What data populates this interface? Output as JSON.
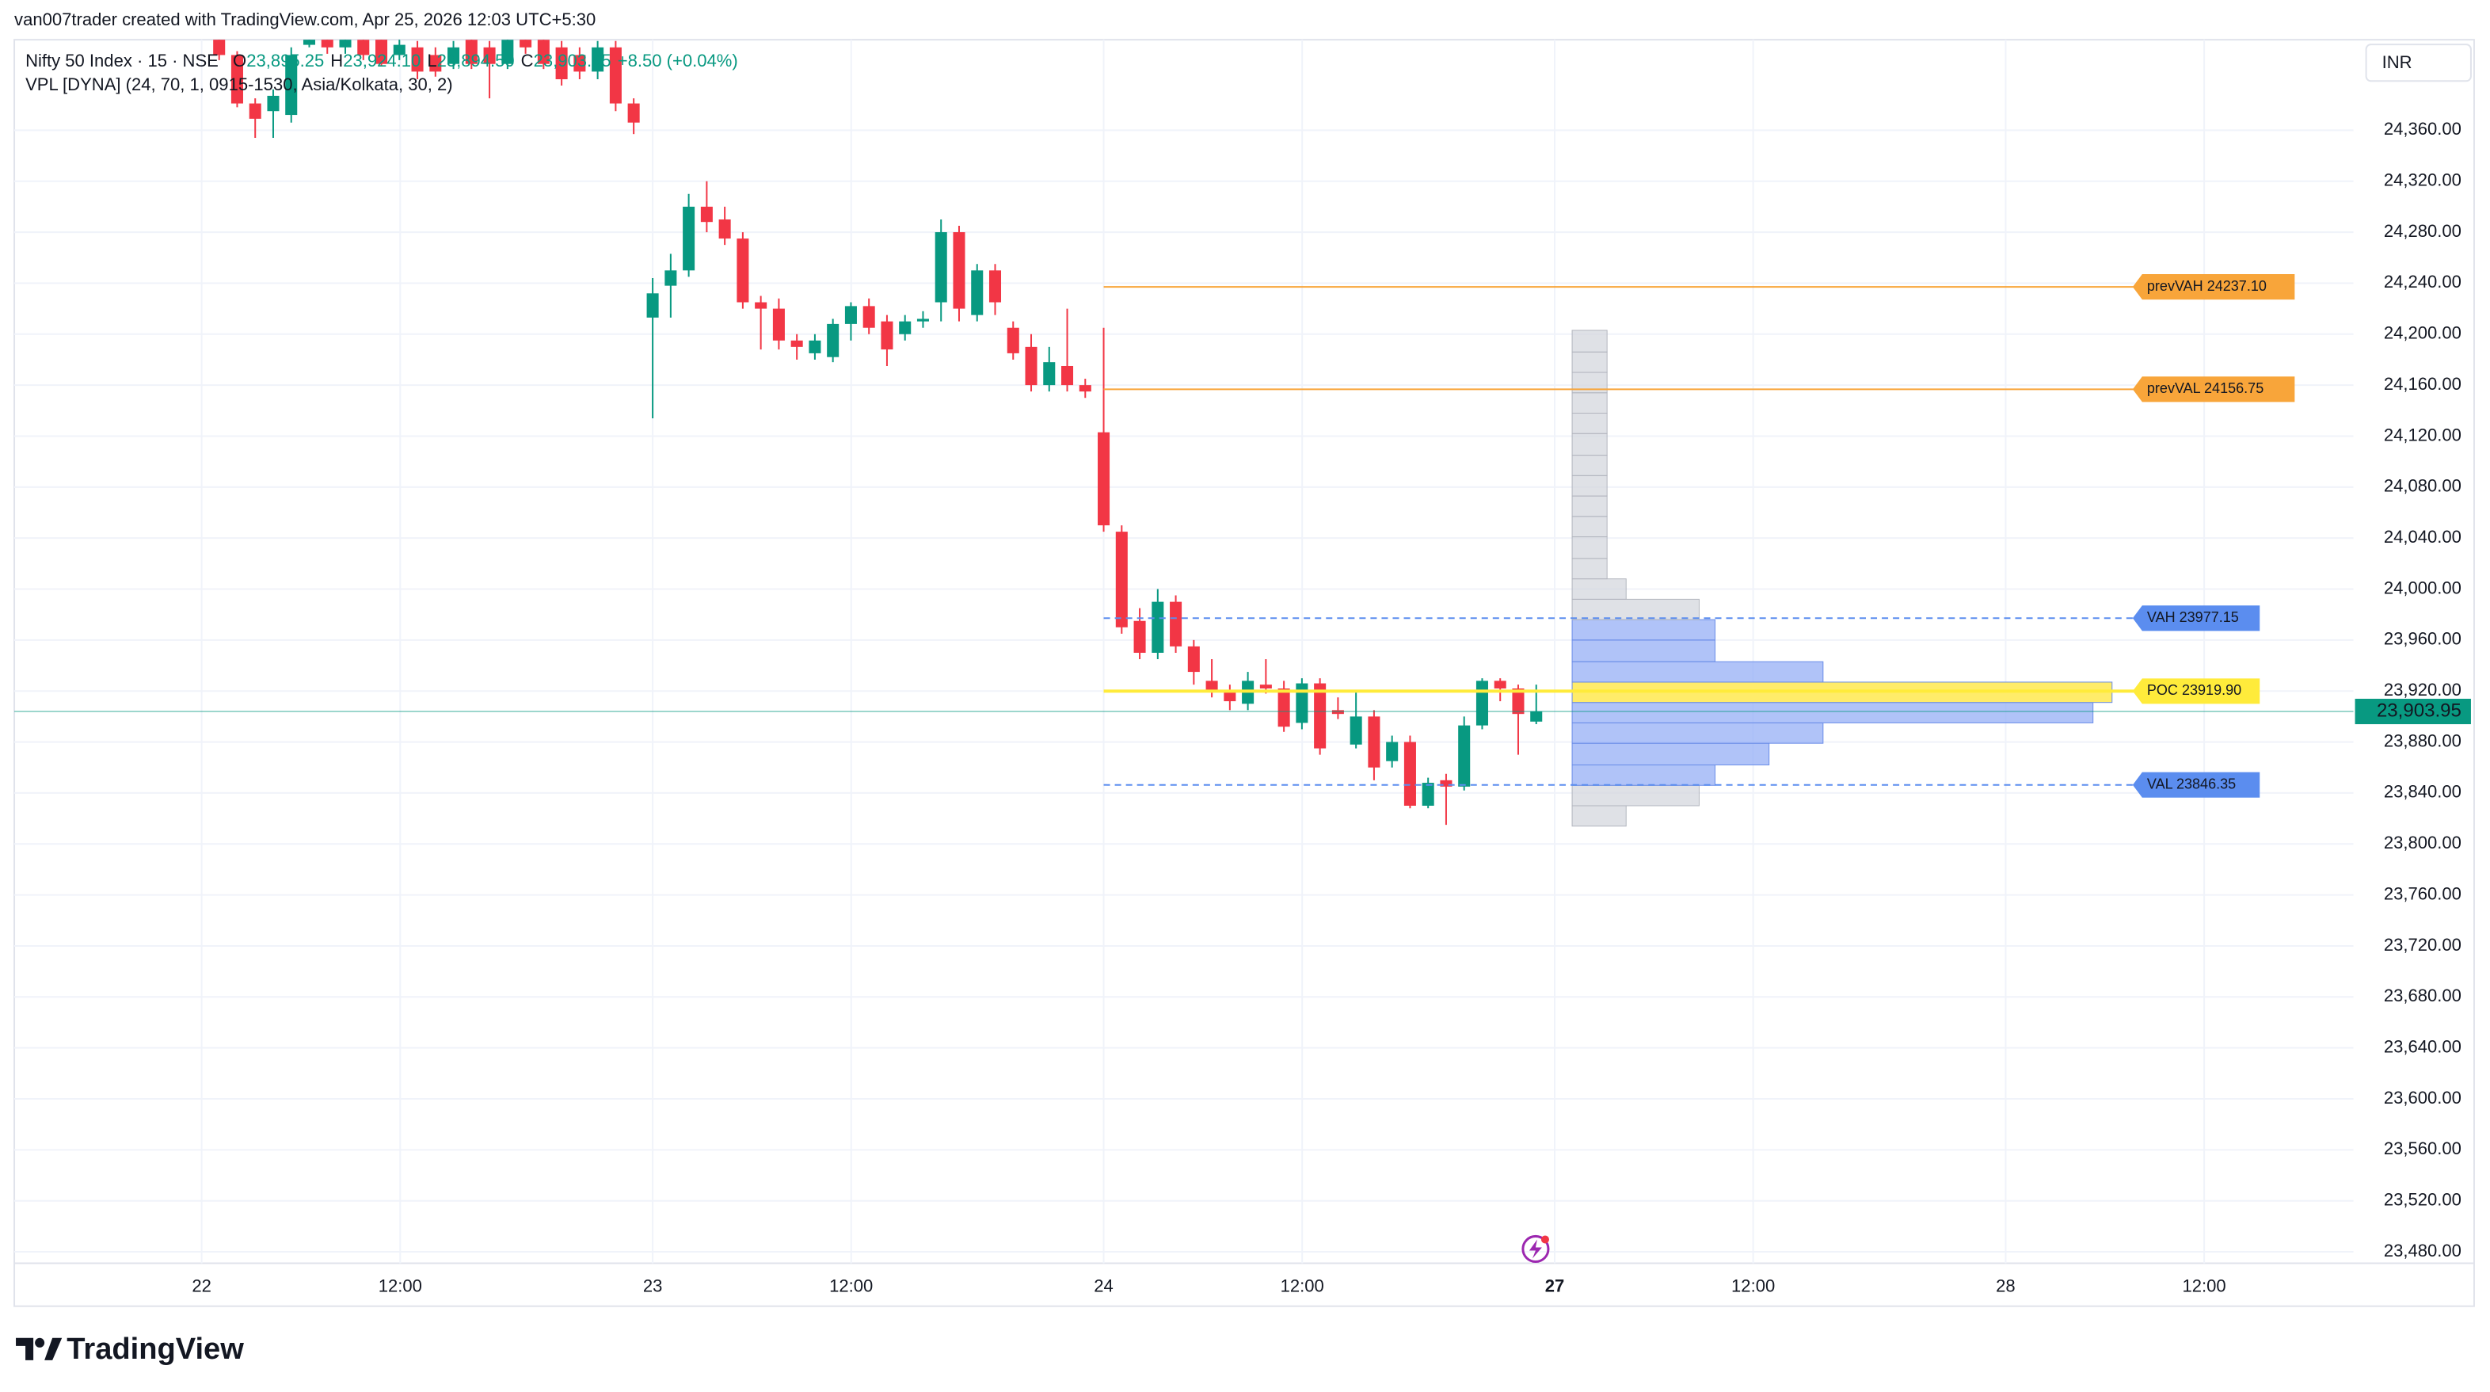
{
  "chart_data": {
    "type": "candlestick",
    "watermark": "van007trader created with TradingView.com, Apr 25, 2026 12:03 UTC+5:30",
    "symbol": "Nifty 50 Index · 15 · NSE",
    "ohlc_legend": [
      {
        "key": "O",
        "label": "23,895.25"
      },
      {
        "key": "H",
        "label": "23,924.10"
      },
      {
        "key": "L",
        "label": "23,894.50"
      },
      {
        "key": "C",
        "label": "23,903.95"
      }
    ],
    "change": "+8.50 (+0.04%)",
    "indicator": "VPL [DYNA] (24, 70, 1, 0915-1530, Asia/Kolkata, 30, 2)",
    "currency": "INR",
    "brand": "TradingView",
    "up_color": "#089981",
    "down_color": "#f23645",
    "x_labels": [
      "22",
      "12:00",
      "23",
      "12:00",
      "24",
      "12:00",
      "27",
      "12:00",
      "28",
      "12:00"
    ],
    "ylim": [
      23471,
      24431
    ],
    "yticks": [
      {
        "value": 23480,
        "label": "23,480.00"
      },
      {
        "value": 23520,
        "label": "23,520.00"
      },
      {
        "value": 23560,
        "label": "23,560.00"
      },
      {
        "value": 23600,
        "label": "23,600.00"
      },
      {
        "value": 23640,
        "label": "23,640.00"
      },
      {
        "value": 23680,
        "label": "23,680.00"
      },
      {
        "value": 23720,
        "label": "23,720.00"
      },
      {
        "value": 23760,
        "label": "23,760.00"
      },
      {
        "value": 23800,
        "label": "23,800.00"
      },
      {
        "value": 23840,
        "label": "23,840.00"
      },
      {
        "value": 23880,
        "label": "23,880.00"
      },
      {
        "value": 23920,
        "label": "23,920.00"
      },
      {
        "value": 23960,
        "label": "23,960.00"
      },
      {
        "value": 24000,
        "label": "24,000.00"
      },
      {
        "value": 24040,
        "label": "24,040.00"
      },
      {
        "value": 24080,
        "label": "24,080.00"
      },
      {
        "value": 24120,
        "label": "24,120.00"
      },
      {
        "value": 24160,
        "label": "24,160.00"
      },
      {
        "value": 24200,
        "label": "24,200.00"
      },
      {
        "value": 24240,
        "label": "24,240.00"
      },
      {
        "value": 24280,
        "label": "24,280.00"
      },
      {
        "value": 24320,
        "label": "24,320.00"
      },
      {
        "value": 24360,
        "label": "24,360.00"
      }
    ],
    "grid": true,
    "sessions": [
      {
        "open": [
          24437,
          24419,
          24381,
          24375,
          24372,
          24427,
          24437,
          24425,
          24431,
          24437,
          24419,
          24425,
          24419,
          24412,
          24431,
          24425,
          24412,
          24437,
          24431,
          24425,
          24419,
          24406,
          24425,
          24381
        ],
        "high": [
          24440,
          24422,
          24385,
          24392,
          24425,
          24440,
          24440,
          24440,
          24437,
          24440,
          24432,
          24430,
          24425,
          24430,
          24437,
          24430,
          24437,
          24440,
          24437,
          24430,
          24425,
          24430,
          24430,
          24385
        ],
        "low": [
          24415,
          24378,
          24354,
          24354,
          24366,
          24425,
          24420,
          24420,
          24415,
          24410,
          24415,
          24400,
          24402,
          24408,
          24408,
          24385,
          24408,
          24420,
          24408,
          24395,
          24400,
          24400,
          24375,
          24357
        ],
        "close": [
          24419,
          24381,
          24369,
          24387,
          24419,
          24437,
          24425,
          24435,
          24419,
          24412,
          24427,
          24406,
          24406,
          24425,
          24412,
          24412,
          24431,
          24425,
          24412,
          24400,
          24406,
          24425,
          24381,
          24366
        ]
      },
      {
        "open": [
          24213,
          24238,
          24250,
          24300,
          24290,
          24275,
          24225,
          24220,
          24195,
          24185,
          24182,
          24208,
          24222,
          24210,
          24200,
          24210,
          24225,
          24280,
          24215,
          24250,
          24205,
          24190,
          24160,
          24175,
          24160
        ],
        "high": [
          24244,
          24263,
          24310,
          24320,
          24300,
          24280,
          24230,
          24228,
          24200,
          24200,
          24212,
          24225,
          24228,
          24215,
          24215,
          24218,
          24290,
          24285,
          24255,
          24255,
          24210,
          24200,
          24190,
          24220,
          24165
        ],
        "low": [
          24134,
          24213,
          24245,
          24280,
          24270,
          24220,
          24188,
          24188,
          24180,
          24180,
          24178,
          24195,
          24200,
          24175,
          24195,
          24205,
          24210,
          24210,
          24210,
          24215,
          24180,
          24155,
          24155,
          24155,
          24150
        ],
        "close": [
          24232,
          24250,
          24300,
          24288,
          24275,
          24225,
          24220,
          24195,
          24190,
          24195,
          24208,
          24222,
          24205,
          24188,
          24210,
          24212,
          24280,
          24220,
          24250,
          24225,
          24185,
          24160,
          24178,
          24160,
          24155
        ]
      },
      {
        "open": [
          24123,
          24045,
          23975,
          23950,
          23990,
          23955,
          23928,
          23920,
          23910,
          23925,
          23922,
          23895,
          23926,
          23905,
          23878,
          23900,
          23865,
          23880,
          23830,
          23850,
          23845,
          23893,
          23928,
          23922,
          23896
        ],
        "high": [
          24205,
          24050,
          23985,
          24000,
          23995,
          23960,
          23945,
          23925,
          23935,
          23945,
          23928,
          23930,
          23930,
          23915,
          23920,
          23905,
          23885,
          23885,
          23852,
          23855,
          23900,
          23930,
          23930,
          23925,
          23925
        ],
        "low": [
          24045,
          23965,
          23945,
          23945,
          23950,
          23925,
          23915,
          23905,
          23905,
          23918,
          23888,
          23890,
          23870,
          23898,
          23875,
          23850,
          23860,
          23828,
          23828,
          23815,
          23842,
          23890,
          23912,
          23870,
          23894
        ],
        "close": [
          24050,
          23970,
          23950,
          23990,
          23955,
          23935,
          23920,
          23912,
          23928,
          23922,
          23892,
          23926,
          23875,
          23902,
          23900,
          23860,
          23880,
          23830,
          23848,
          23845,
          23893,
          23928,
          23922,
          23902,
          23904
        ]
      }
    ],
    "volume_profile": {
      "levels": [
        23814,
        23830,
        23846,
        23862,
        23879,
        23895,
        23911,
        23927,
        23943,
        23960,
        23976,
        23992,
        24008,
        24024,
        24041,
        24057,
        24073,
        24089,
        24105,
        24122,
        24138,
        24154,
        24170,
        24186,
        24203
      ],
      "volumes": [
        34,
        80,
        90,
        124,
        158,
        328,
        340,
        158,
        90,
        90,
        80,
        34,
        22,
        22,
        22,
        22,
        22,
        22,
        22,
        22,
        22,
        22,
        22,
        22
      ],
      "colors": {
        "outside": "#d1d4dc",
        "value_area": "#8fa9f5",
        "poc": "#ffeb62"
      }
    },
    "levels": [
      {
        "label": "prevVAH 24237.10",
        "value": 24237.1,
        "color": "#f8a53a",
        "style": "solid"
      },
      {
        "label": "prevVAL 24156.75",
        "value": 24156.75,
        "color": "#f8a53a",
        "style": "solid"
      },
      {
        "label": "VAH 23977.15",
        "value": 23977.15,
        "color": "#5b8def",
        "style": "dashed"
      },
      {
        "label": "POC 23919.90",
        "value": 23919.9,
        "color": "#ffeb3b",
        "style": "solid"
      },
      {
        "label": "VAL 23846.35",
        "value": 23846.35,
        "color": "#5b8def",
        "style": "dashed"
      }
    ],
    "last_price": {
      "value": 23903.95,
      "label": "23,903.95",
      "color": "#089981"
    }
  }
}
